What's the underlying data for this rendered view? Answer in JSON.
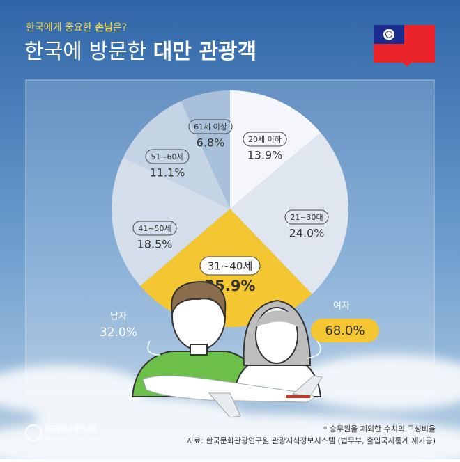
{
  "kicker": [
    "한국에게 중요한 ",
    "손님",
    "은?"
  ],
  "title": [
    "한국에 방문한 ",
    "대만 관광객"
  ],
  "chart_data": {
    "type": "pie",
    "categories": [
      "20세 이하",
      "21~30대",
      "31~40세",
      "41~50세",
      "51~60세",
      "61세 이상"
    ],
    "values": [
      13.9,
      24.0,
      25.9,
      18.5,
      11.1,
      6.8
    ],
    "value_labels": [
      "13.9%",
      "24.0%",
      "25.9%",
      "18.5%",
      "11.1%",
      "6.8%"
    ],
    "colors": [
      "#f4f6f9",
      "#dfe6ef",
      "#f3c632",
      "#d4deea",
      "#c5d4e5",
      "#a8c0da"
    ]
  },
  "gender": {
    "categories": [
      "남자",
      "여자"
    ],
    "values": [
      32.0,
      68.0
    ],
    "value_labels": [
      "32.0%",
      "68.0%"
    ]
  },
  "footnote": "* 승무원을 제외한 수치의 구성비율",
  "source": "자료: 한국문화관광연구원 관광지식정보시스템 (법무부, 출입국자통계 재가공)",
  "logo": {
    "name": "한국문화관광연구원",
    "sub": "Korea Culture & Tourism Institute"
  }
}
